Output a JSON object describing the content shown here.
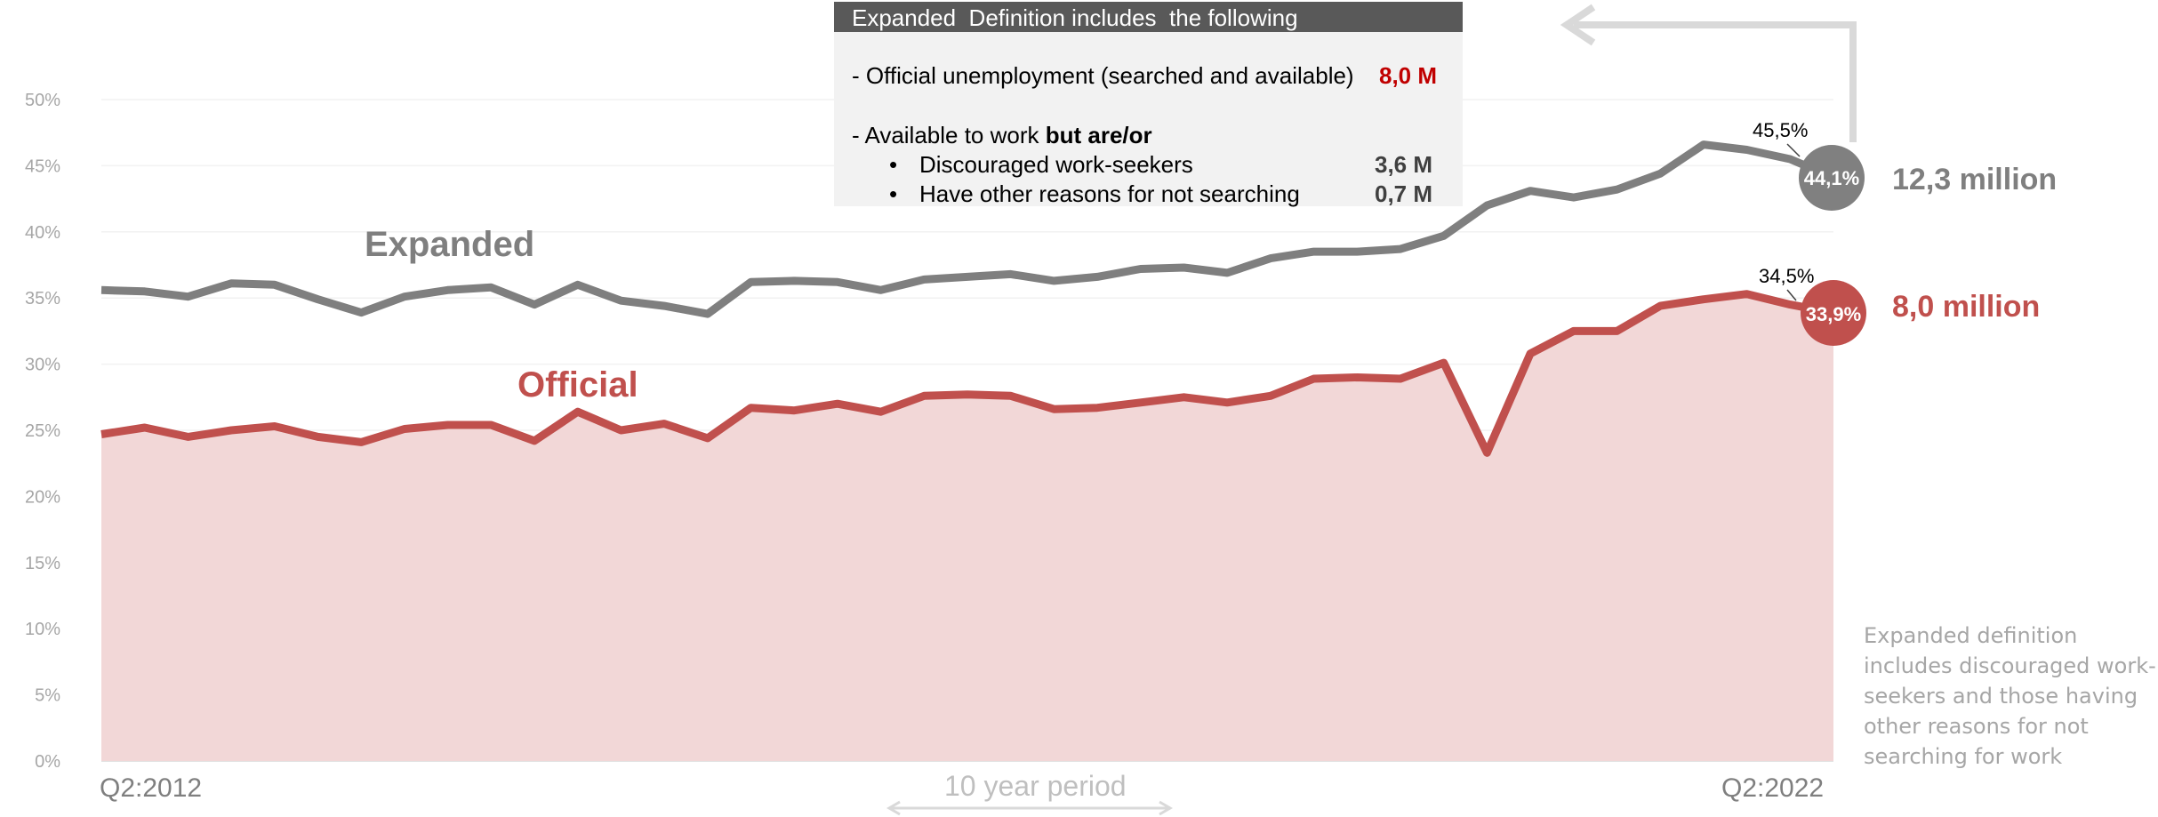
{
  "chart_data": {
    "type": "area",
    "x_start_label": "Q2:2012",
    "x_end_label": "Q2:2022",
    "ylim": [
      0,
      50
    ],
    "yticks": [
      "0%",
      "5%",
      "10%",
      "15%",
      "20%",
      "25%",
      "30%",
      "35%",
      "40%",
      "45%",
      "50%"
    ],
    "grid": true,
    "series": [
      {
        "name": "Expanded",
        "color": "#7f7f7f",
        "values": [
          35.6,
          35.5,
          35.1,
          36.1,
          36.0,
          34.9,
          33.9,
          35.1,
          35.6,
          35.8,
          34.5,
          36.0,
          34.8,
          34.4,
          33.8,
          36.2,
          36.3,
          36.2,
          35.6,
          36.4,
          36.6,
          36.8,
          36.3,
          36.6,
          37.2,
          37.3,
          36.9,
          38.0,
          38.5,
          38.5,
          38.7,
          39.7,
          42.0,
          43.1,
          42.6,
          43.2,
          44.4,
          46.6,
          46.2,
          45.5,
          44.1
        ]
      },
      {
        "name": "Official",
        "color": "#c0504d",
        "values": [
          24.7,
          25.2,
          24.5,
          25.0,
          25.3,
          24.5,
          24.1,
          25.1,
          25.4,
          25.4,
          24.2,
          26.4,
          25.0,
          25.5,
          24.4,
          26.7,
          26.5,
          27.0,
          26.4,
          27.6,
          27.7,
          27.6,
          26.6,
          26.7,
          27.1,
          27.5,
          27.1,
          27.6,
          28.9,
          29.0,
          28.9,
          30.1,
          23.3,
          30.8,
          32.5,
          32.5,
          34.4,
          34.9,
          35.3,
          34.5,
          33.9
        ]
      }
    ],
    "annotations": {
      "expanded_prev": "45,5%",
      "expanded_last": "44,1%",
      "expanded_total": "12,3 million",
      "official_prev": "34,5%",
      "official_last": "33,9%",
      "official_total": "8,0 million"
    }
  },
  "definition_box": {
    "header": "Expanded  Definition includes  the following",
    "line1": "- Official unemployment (searched and available)",
    "line1_value": "8,0 M",
    "line2_prefix": "- Available to work ",
    "line2_bold": "but are/or",
    "bullet_char": "•",
    "item1": "Discouraged work-seekers",
    "item1_value": "3,6 M",
    "item2": "Have other reasons for not searching",
    "item2_value": "0,7 M"
  },
  "note": "Expanded definition includes discouraged work-seekers and those having other reasons for not searching for work",
  "period_label": "10 year period",
  "colors": {
    "expanded": "#7f7f7f",
    "official": "#c0504d",
    "official_fill": "#f2d7d7",
    "accent_red": "#c00000"
  }
}
